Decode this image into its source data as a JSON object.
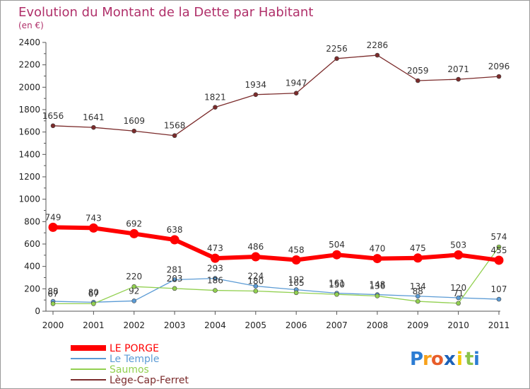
{
  "chart_data": {
    "type": "line",
    "title": "Evolution du Montant de la Dette par Habitant",
    "subtitle": "(en €)",
    "x": [
      "2000",
      "2001",
      "2002",
      "2003",
      "2004",
      "2005",
      "2006",
      "2007",
      "2008",
      "2009",
      "2010",
      "2011"
    ],
    "ylim": [
      0,
      2400
    ],
    "yticks": [
      "0",
      "200",
      "400",
      "600",
      "800",
      "1000",
      "1200",
      "1400",
      "1600",
      "1800",
      "2000",
      "2200",
      "2400"
    ],
    "grid": false,
    "legend_position": "bottom-left",
    "series": [
      {
        "name": "LE PORGE",
        "color": "#ff0000",
        "values": [
          749,
          743,
          692,
          638,
          473,
          486,
          458,
          504,
          470,
          475,
          503,
          455
        ],
        "labels": [
          "749",
          "743",
          "692",
          "638",
          "473",
          "486",
          "458",
          "504",
          "470",
          "475",
          "503",
          "455"
        ]
      },
      {
        "name": "Le Temple",
        "color": "#5b9bd5",
        "values": [
          88,
          80,
          92,
          281,
          293,
          224,
          192,
          161,
          148,
          134,
          120,
          107
        ],
        "labels": [
          "88",
          "80",
          "92",
          "281",
          "293",
          "224",
          "192",
          "161",
          "148",
          "134",
          "120",
          "107"
        ]
      },
      {
        "name": "Saumos",
        "color": "#92d050",
        "values": [
          67,
          67,
          220,
          203,
          186,
          180,
          165,
          150,
          136,
          88,
          71,
          574
        ],
        "labels": [
          "67",
          "67",
          "220",
          "203",
          "186",
          "180",
          "165",
          "150",
          "136",
          "88",
          "71",
          "574"
        ]
      },
      {
        "name": "Lège-Cap-Ferret",
        "color": "#7b2b2b",
        "values": [
          1656,
          1641,
          1609,
          1568,
          1821,
          1934,
          1947,
          2256,
          2286,
          2059,
          2071,
          2096
        ],
        "labels": [
          "1656",
          "1641",
          "1609",
          "1568",
          "1821",
          "1934",
          "1947",
          "2256",
          "2286",
          "2059",
          "2071",
          "2096"
        ]
      }
    ]
  },
  "logo": {
    "letters": [
      "P",
      "r",
      "o",
      "x",
      "i",
      "t",
      "i"
    ],
    "colors": [
      "#2b7cd3",
      "#f7a11a",
      "#e85d2a",
      "#1c62b8",
      "#f7c600",
      "#8bc34a",
      "#2b7cd3"
    ]
  }
}
